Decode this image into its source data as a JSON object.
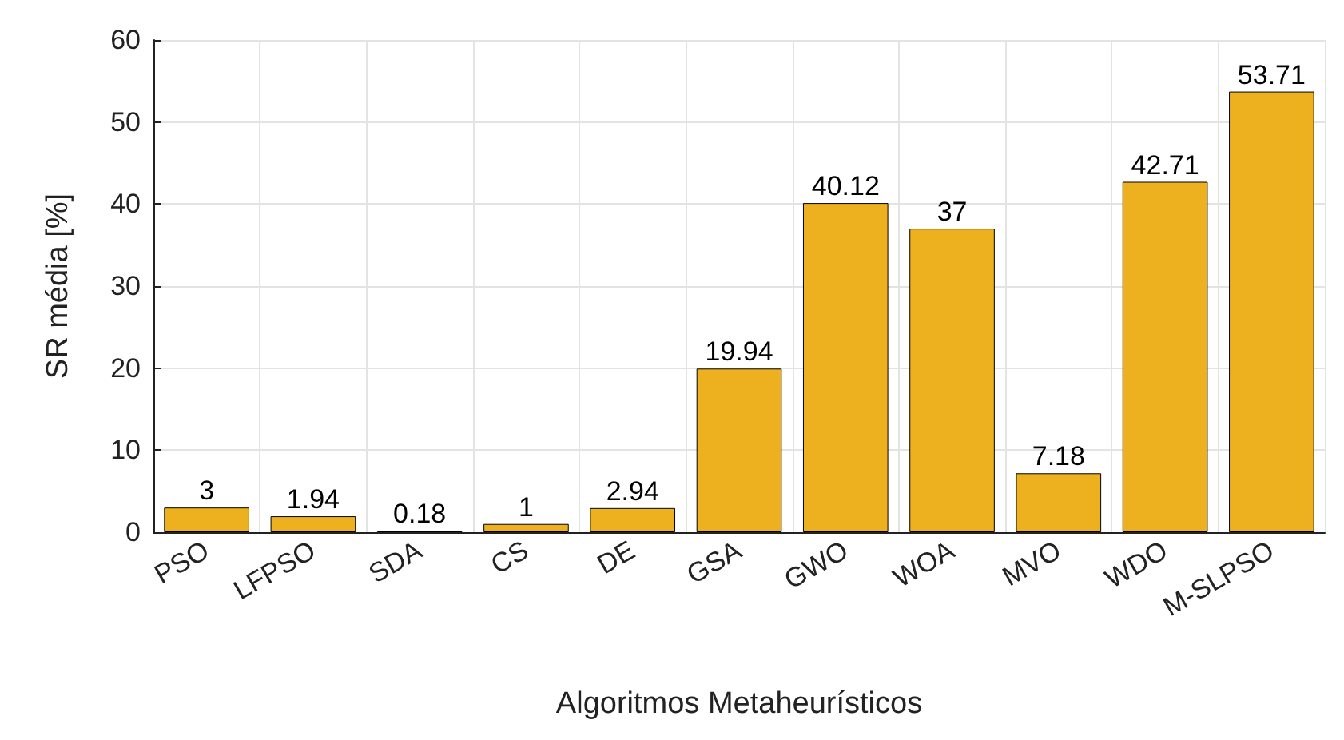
{
  "chart_data": {
    "type": "bar",
    "xlabel": "Algoritmos Metaheurísticos",
    "ylabel": "SR média [%]",
    "categories": [
      "PSO",
      "LFPSO",
      "SDA",
      "CS",
      "DE",
      "GSA",
      "GWO",
      "WOA",
      "MVO",
      "WDO",
      "M-SLPSO"
    ],
    "values": [
      3,
      1.94,
      0.18,
      1,
      2.94,
      19.94,
      40.12,
      37,
      7.18,
      42.71,
      53.71
    ],
    "color": "#edb120",
    "ylim": [
      0,
      60
    ],
    "yticks": [
      0,
      10,
      20,
      30,
      40,
      50,
      60
    ],
    "grid": true,
    "data_labels": true
  }
}
